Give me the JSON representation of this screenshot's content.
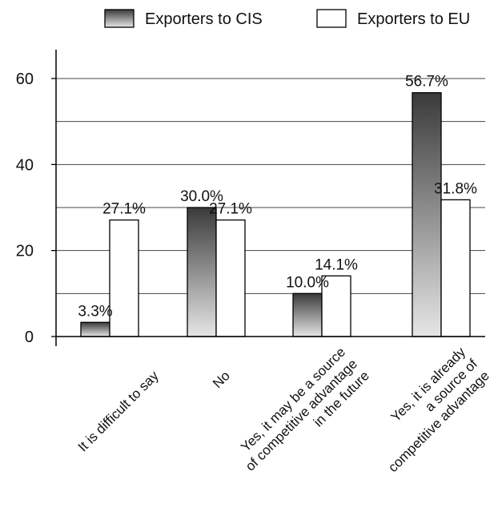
{
  "chart_data": {
    "type": "bar",
    "title": "",
    "xlabel": "",
    "ylabel": "",
    "ylim": [
      0,
      60
    ],
    "yticks": [
      0,
      20,
      40,
      60
    ],
    "grid": true,
    "legend_position": "top",
    "categories": [
      [
        "It is difficult to say"
      ],
      [
        "No"
      ],
      [
        "Yes, it may be a source",
        "of competitive advantage",
        "in the future"
      ],
      [
        "Yes, it is already",
        "a source of",
        "competitive advantage"
      ]
    ],
    "series": [
      {
        "name": "Exporters to CIS",
        "values": [
          3.3,
          30.0,
          10.0,
          56.7
        ],
        "labels": [
          "3.3%",
          "30.0%",
          "10.0%",
          "56.7%"
        ],
        "fill": "gradient-dark",
        "color_top": "#3a3a3a",
        "color_bottom": "#e6e6e6"
      },
      {
        "name": "Exporters to EU",
        "values": [
          27.1,
          27.1,
          14.1,
          31.8
        ],
        "labels": [
          "27.1%",
          "27.1%",
          "14.1%",
          "31.8%"
        ],
        "fill": "white",
        "color_top": "#ffffff",
        "color_bottom": "#ffffff"
      }
    ]
  }
}
